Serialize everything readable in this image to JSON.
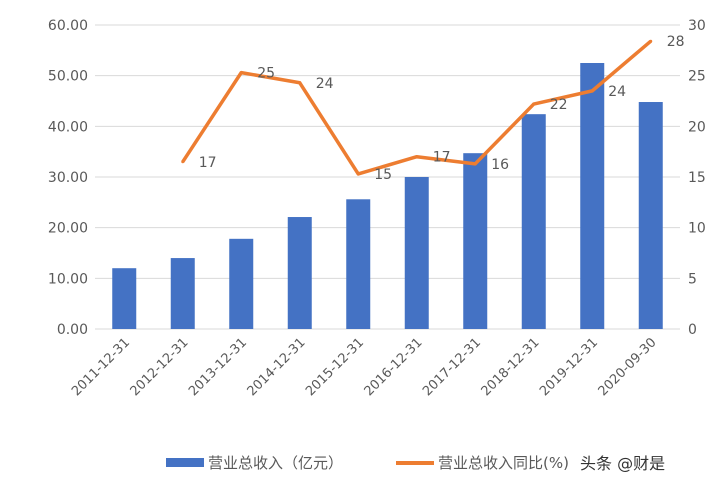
{
  "chart_data": {
    "type": "bar+line",
    "categories": [
      "2011-12-31",
      "2012-12-31",
      "2013-12-31",
      "2014-12-31",
      "2015-12-31",
      "2016-12-31",
      "2017-12-31",
      "2018-12-31",
      "2019-12-31",
      "2020-09-30"
    ],
    "series": [
      {
        "name": "营业总收入（亿元）",
        "type": "bar",
        "axis": "left",
        "color": "#4472c4",
        "values": [
          12.0,
          14.0,
          17.8,
          22.1,
          25.6,
          30.0,
          34.7,
          42.4,
          52.5,
          44.8
        ]
      },
      {
        "name": "营业总收入同比(%)",
        "type": "line",
        "axis": "right",
        "color": "#ed7d31",
        "values": [
          null,
          16.5,
          25.3,
          24.3,
          15.3,
          17.0,
          16.3,
          22.2,
          23.5,
          28.4
        ],
        "labels": [
          "",
          "17",
          "25",
          "24",
          "15",
          "17",
          "16",
          "22",
          "24",
          "28"
        ]
      }
    ],
    "y_left": {
      "range": [
        0,
        60
      ],
      "ticks": [
        "0.00",
        "10.00",
        "20.00",
        "30.00",
        "40.00",
        "50.00",
        "60.00"
      ]
    },
    "y_right": {
      "range": [
        0,
        30
      ],
      "ticks": [
        "0",
        "5",
        "10",
        "15",
        "20",
        "25",
        "30"
      ]
    },
    "grid": true,
    "legend_position": "bottom"
  },
  "watermark": "头条 @财是"
}
